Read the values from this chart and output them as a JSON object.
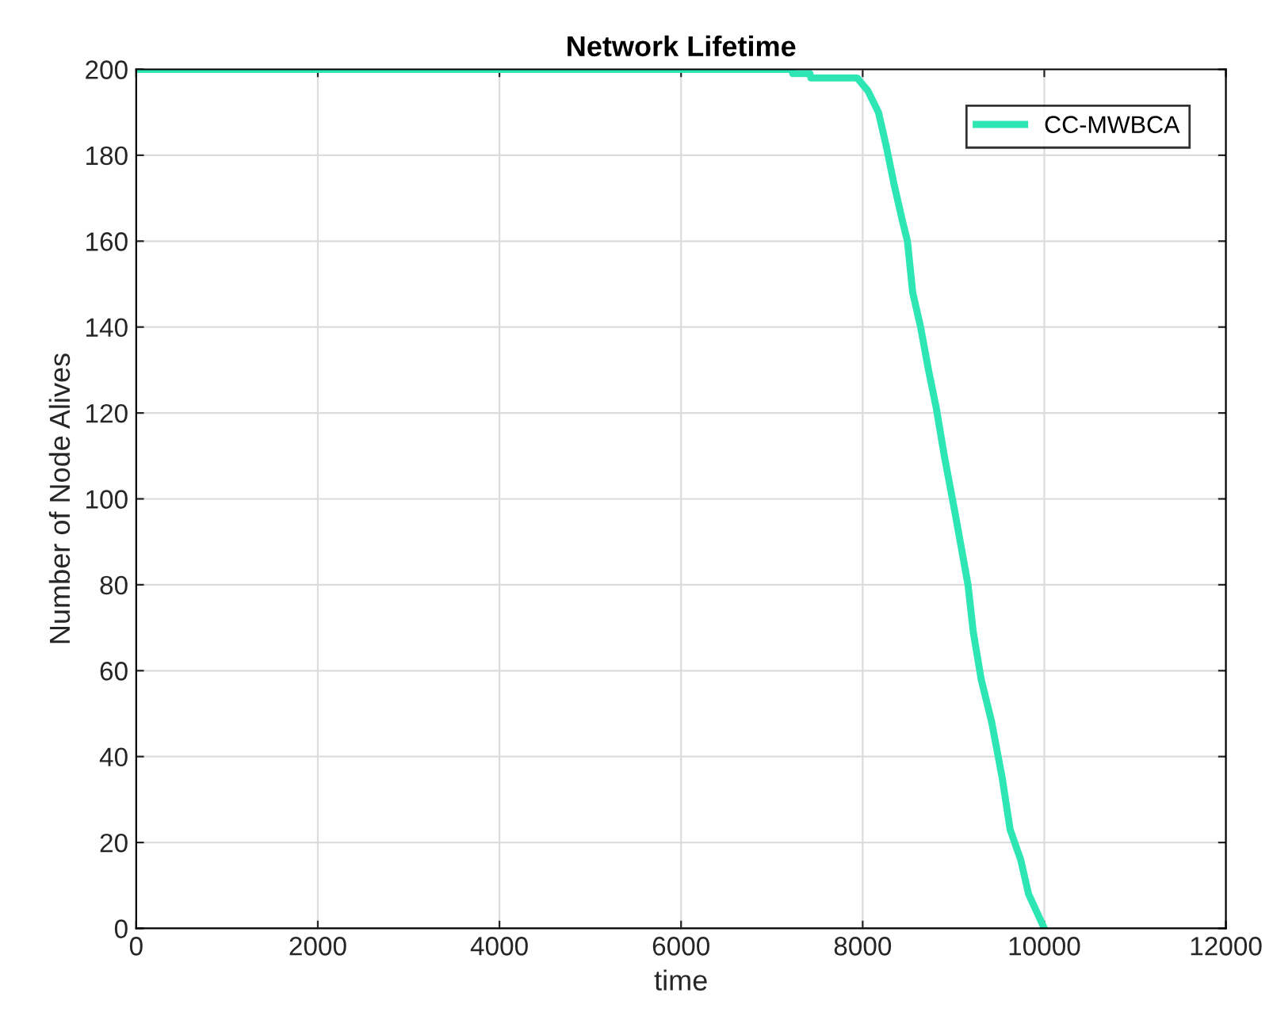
{
  "chart_data": {
    "type": "line",
    "title": "Network Lifetime",
    "xlabel": "time",
    "ylabel": "Number of Node Alives",
    "xlim": [
      0,
      12000
    ],
    "xticks": [
      0,
      2000,
      4000,
      6000,
      8000,
      10000,
      12000
    ],
    "ylim": [
      0,
      200
    ],
    "yticks": [
      0,
      20,
      40,
      60,
      80,
      100,
      120,
      140,
      160,
      180,
      200
    ],
    "grid": true,
    "legend": "top right",
    "series": [
      {
        "name": "CC-MWBCA",
        "color": "#2ee6b4",
        "x": [
          0,
          7220,
          7230,
          7420,
          7430,
          7940,
          8058,
          8174,
          8261,
          8348,
          8435,
          8493,
          8551,
          8638,
          8725,
          8812,
          8899,
          9015,
          9160,
          9218,
          9305,
          9421,
          9537,
          9624,
          9740,
          9827,
          10000
        ],
        "values": [
          200,
          200,
          199,
          199,
          198,
          198,
          195,
          190,
          182,
          173,
          165,
          160,
          148,
          140,
          130,
          121,
          110,
          97,
          80,
          69,
          58,
          48,
          35,
          23,
          16,
          8,
          0
        ]
      }
    ]
  }
}
